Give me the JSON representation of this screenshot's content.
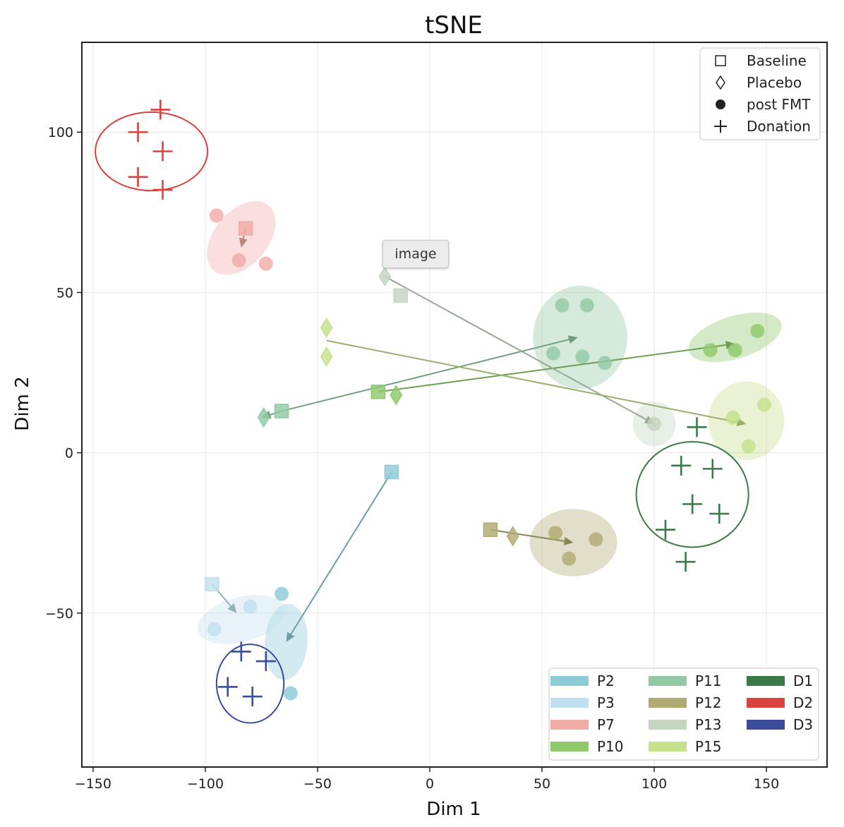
{
  "tooltip": "image",
  "chart_data": {
    "type": "scatter",
    "title": "tSNE",
    "xlabel": "Dim 1",
    "ylabel": "Dim 2",
    "xlim": [
      -155,
      177
    ],
    "ylim": [
      -98,
      128
    ],
    "xticks": [
      -150,
      -100,
      -50,
      0,
      50,
      100,
      150
    ],
    "yticks": [
      -50,
      0,
      50,
      100
    ],
    "grid": true,
    "colors": {
      "P2": "#8ccbd8",
      "P3": "#bfe0ee",
      "P7": "#f0aba6",
      "P10": "#8ec96b",
      "P11": "#92c9a3",
      "P12": "#b0ab72",
      "P13": "#c3d6c0",
      "P15": "#c6e08c",
      "D1": "#3b7a48",
      "D2": "#d9423f",
      "D3": "#3b4d9a"
    },
    "marker_legend": {
      "position": "upper right",
      "entries": [
        {
          "marker": "square",
          "label": "Baseline"
        },
        {
          "marker": "diamond",
          "label": "Placebo"
        },
        {
          "marker": "circle",
          "label": "post FMT"
        },
        {
          "marker": "plus",
          "label": "Donation"
        }
      ]
    },
    "color_legend": {
      "position": "lower right",
      "entries": [
        "P2",
        "P3",
        "P7",
        "P10",
        "P11",
        "P12",
        "P13",
        "P15",
        "D1",
        "D2",
        "D3"
      ]
    },
    "series": [
      {
        "name": "P2",
        "points": [
          {
            "x": -17,
            "y": -6,
            "m": "square"
          },
          {
            "x": -66,
            "y": -44,
            "m": "circle"
          },
          {
            "x": -62,
            "y": -75,
            "m": "circle"
          }
        ]
      },
      {
        "name": "P3",
        "points": [
          {
            "x": -97,
            "y": -41,
            "m": "square"
          },
          {
            "x": -80,
            "y": -48,
            "m": "circle"
          },
          {
            "x": -96,
            "y": -55,
            "m": "circle"
          }
        ]
      },
      {
        "name": "P7",
        "points": [
          {
            "x": -82,
            "y": 70,
            "m": "square"
          },
          {
            "x": -95,
            "y": 74,
            "m": "circle"
          },
          {
            "x": -85,
            "y": 60,
            "m": "circle"
          },
          {
            "x": -73,
            "y": 59,
            "m": "circle"
          }
        ]
      },
      {
        "name": "P10",
        "points": [
          {
            "x": -23,
            "y": 19,
            "m": "square"
          },
          {
            "x": -15,
            "y": 18,
            "m": "diamond"
          },
          {
            "x": 125,
            "y": 32,
            "m": "circle"
          },
          {
            "x": 136,
            "y": 32,
            "m": "circle"
          },
          {
            "x": 146,
            "y": 38,
            "m": "circle"
          }
        ]
      },
      {
        "name": "P11",
        "points": [
          {
            "x": -66,
            "y": 13,
            "m": "square"
          },
          {
            "x": -74,
            "y": 11,
            "m": "diamond"
          },
          {
            "x": 59,
            "y": 46,
            "m": "circle"
          },
          {
            "x": 70,
            "y": 46,
            "m": "circle"
          },
          {
            "x": 55,
            "y": 31,
            "m": "circle"
          },
          {
            "x": 68,
            "y": 30,
            "m": "circle"
          },
          {
            "x": 78,
            "y": 28,
            "m": "circle"
          }
        ]
      },
      {
        "name": "P12",
        "points": [
          {
            "x": 27,
            "y": -24,
            "m": "square"
          },
          {
            "x": 37,
            "y": -26,
            "m": "diamond"
          },
          {
            "x": 56,
            "y": -25,
            "m": "circle"
          },
          {
            "x": 74,
            "y": -27,
            "m": "circle"
          },
          {
            "x": 62,
            "y": -33,
            "m": "circle"
          }
        ]
      },
      {
        "name": "P13",
        "points": [
          {
            "x": -13,
            "y": 49,
            "m": "square"
          },
          {
            "x": -20,
            "y": 55,
            "m": "diamond"
          },
          {
            "x": 100,
            "y": 9,
            "m": "circle"
          }
        ]
      },
      {
        "name": "P15",
        "points": [
          {
            "x": -46,
            "y": 39,
            "m": "diamond"
          },
          {
            "x": -46,
            "y": 30,
            "m": "diamond"
          },
          {
            "x": 135,
            "y": 11,
            "m": "circle"
          },
          {
            "x": 149,
            "y": 15,
            "m": "circle"
          },
          {
            "x": 142,
            "y": 2,
            "m": "circle"
          }
        ]
      },
      {
        "name": "D1",
        "points": [
          {
            "x": 119,
            "y": 8,
            "m": "plus"
          },
          {
            "x": 112,
            "y": -4,
            "m": "plus"
          },
          {
            "x": 126,
            "y": -5,
            "m": "plus"
          },
          {
            "x": 117,
            "y": -16,
            "m": "plus"
          },
          {
            "x": 129,
            "y": -19,
            "m": "plus"
          },
          {
            "x": 105,
            "y": -24,
            "m": "plus"
          },
          {
            "x": 114,
            "y": -34,
            "m": "plus"
          }
        ]
      },
      {
        "name": "D2",
        "points": [
          {
            "x": -120,
            "y": 107,
            "m": "plus"
          },
          {
            "x": -130,
            "y": 100,
            "m": "plus"
          },
          {
            "x": -119,
            "y": 94,
            "m": "plus"
          },
          {
            "x": -130,
            "y": 86,
            "m": "plus"
          },
          {
            "x": -119,
            "y": 82,
            "m": "plus"
          }
        ]
      },
      {
        "name": "D3",
        "points": [
          {
            "x": -84,
            "y": -62,
            "m": "plus"
          },
          {
            "x": -73,
            "y": -65,
            "m": "plus"
          },
          {
            "x": -90,
            "y": -73,
            "m": "plus"
          },
          {
            "x": -79,
            "y": -76,
            "m": "plus"
          }
        ]
      }
    ],
    "arrows": [
      {
        "series": "P2",
        "from": [
          -17,
          -6
        ],
        "to": [
          -64,
          -59
        ]
      },
      {
        "series": "P3",
        "from": [
          -97,
          -41
        ],
        "to": [
          -86,
          -50
        ]
      },
      {
        "series": "P7",
        "from": [
          -82,
          70
        ],
        "to": [
          -84,
          64
        ]
      },
      {
        "series": "P10",
        "from": [
          -23,
          19
        ],
        "to": [
          136,
          34
        ]
      },
      {
        "series": "P11",
        "from": [
          -66,
          13
        ],
        "to": [
          66,
          36
        ]
      },
      {
        "series": "P11",
        "from": [
          -66,
          13
        ],
        "to": [
          -75,
          11
        ]
      },
      {
        "series": "P12",
        "from": [
          27,
          -24
        ],
        "to": [
          64,
          -28
        ]
      },
      {
        "series": "P13",
        "from": [
          -20,
          55
        ],
        "to": [
          100,
          9
        ]
      },
      {
        "series": "P15",
        "from": [
          -46,
          35
        ],
        "to": [
          141,
          9
        ]
      }
    ],
    "ellipses": [
      {
        "series": "P2",
        "cx": -64,
        "cy": -59,
        "rx": 17,
        "ry": 9.5,
        "angle": 86,
        "style": "filled"
      },
      {
        "series": "P3",
        "cx": -84,
        "cy": -52,
        "rx": 20,
        "ry": 10,
        "angle": 15,
        "style": "filled"
      },
      {
        "series": "P7",
        "cx": -84,
        "cy": 67,
        "rx": 19,
        "ry": 12,
        "angle": 50,
        "style": "filled"
      },
      {
        "series": "P10",
        "cx": 136,
        "cy": 36,
        "rx": 21.5,
        "ry": 9.5,
        "angle": 17,
        "style": "filled"
      },
      {
        "series": "P11",
        "cx": 67,
        "cy": 36,
        "rx": 23,
        "ry": 21,
        "angle": 90,
        "style": "filled"
      },
      {
        "series": "P12",
        "cx": 64,
        "cy": -28,
        "rx": 19.5,
        "ry": 15,
        "angle": 0,
        "style": "filled"
      },
      {
        "series": "P13",
        "cx": 100,
        "cy": 9,
        "rx": 10,
        "ry": 9.5,
        "angle": 90,
        "style": "filled"
      },
      {
        "series": "P15",
        "cx": 141,
        "cy": 10,
        "rx": 17.5,
        "ry": 17,
        "angle": 90,
        "style": "filled"
      },
      {
        "series": "D1",
        "cx": 117,
        "cy": -13,
        "rx": 23.5,
        "ry": 25,
        "angle": 90,
        "style": "outline"
      },
      {
        "series": "D2",
        "cx": -124,
        "cy": 94,
        "rx": 17.5,
        "ry": 25,
        "angle": 90,
        "style": "outline"
      },
      {
        "series": "D3",
        "cx": -80,
        "cy": -72,
        "rx": 17.5,
        "ry": 15,
        "angle": 90,
        "style": "outline"
      }
    ]
  }
}
